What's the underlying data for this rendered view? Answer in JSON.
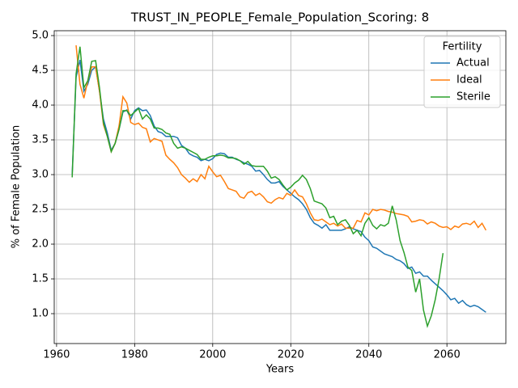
{
  "chart_data": {
    "type": "line",
    "title": "TRUST_IN_PEOPLE_Female_Population_Scoring: 8",
    "x_label": "Years",
    "y_label": "% of Female Population",
    "legend_title": "Fertility",
    "legend_position": "upper right",
    "grid": true,
    "xlim": [
      1959.4,
      2075.1
    ],
    "ylim": [
      0.57,
      5.07
    ],
    "xticks": [
      1960,
      1980,
      2000,
      2020,
      2040,
      2060
    ],
    "yticks": [
      {
        "value": 1,
        "label": "1.0"
      },
      1.5,
      {
        "value": 2,
        "label": "2.0"
      },
      2.5,
      {
        "value": 3,
        "label": "3.0"
      },
      3.5,
      {
        "value": 4,
        "label": "4.0"
      },
      4.5,
      {
        "value": 5,
        "label": "5.0"
      }
    ],
    "x": [
      1964,
      1965,
      1966,
      1967,
      1968,
      1969,
      1970,
      1971,
      1972,
      1973,
      1974,
      1975,
      1976,
      1977,
      1978,
      1979,
      1980,
      1981,
      1982,
      1983,
      1984,
      1985,
      1986,
      1987,
      1988,
      1989,
      1990,
      1991,
      1992,
      1993,
      1994,
      1995,
      1996,
      1997,
      1998,
      1999,
      2000,
      2001,
      2002,
      2003,
      2004,
      2005,
      2006,
      2007,
      2008,
      2009,
      2010,
      2011,
      2012,
      2013,
      2014,
      2015,
      2016,
      2017,
      2018,
      2019,
      2020,
      2021,
      2022,
      2023,
      2024,
      2025,
      2026,
      2027,
      2028,
      2029,
      2030,
      2031,
      2032,
      2033,
      2034,
      2035,
      2036,
      2037,
      2038,
      2039,
      2040,
      2041,
      2042,
      2043,
      2044,
      2045,
      2046,
      2047,
      2048,
      2049,
      2050,
      2051,
      2052,
      2053,
      2054,
      2055,
      2056,
      2057,
      2058,
      2059,
      2060,
      2061,
      2062,
      2063,
      2064,
      2065,
      2066,
      2067,
      2068,
      2069,
      2070
    ],
    "series": [
      {
        "name": "Actual",
        "color": "#1f77b4",
        "values": [
          3.0,
          4.4,
          4.65,
          4.2,
          4.3,
          4.5,
          4.55,
          4.2,
          3.8,
          3.6,
          3.35,
          3.45,
          3.65,
          3.9,
          3.93,
          3.8,
          3.92,
          3.96,
          3.92,
          3.93,
          3.85,
          3.7,
          3.62,
          3.6,
          3.55,
          3.55,
          3.55,
          3.53,
          3.42,
          3.38,
          3.3,
          3.27,
          3.25,
          3.2,
          3.22,
          3.2,
          3.23,
          3.29,
          3.31,
          3.3,
          3.25,
          3.25,
          3.22,
          3.2,
          3.17,
          3.15,
          3.12,
          3.05,
          3.06,
          3.0,
          2.93,
          2.88,
          2.88,
          2.9,
          2.83,
          2.78,
          2.73,
          2.68,
          2.64,
          2.58,
          2.5,
          2.38,
          2.3,
          2.27,
          2.23,
          2.28,
          2.2,
          2.2,
          2.2,
          2.2,
          2.22,
          2.25,
          2.22,
          2.2,
          2.18,
          2.1,
          2.05,
          1.96,
          1.94,
          1.9,
          1.86,
          1.84,
          1.82,
          1.78,
          1.76,
          1.72,
          1.65,
          1.67,
          1.58,
          1.6,
          1.54,
          1.54,
          1.48,
          1.43,
          1.38,
          1.33,
          1.27,
          1.2,
          1.22,
          1.15,
          1.19,
          1.13,
          1.1,
          1.12,
          1.1,
          1.06,
          1.02
        ]
      },
      {
        "name": "Ideal",
        "color": "#ff7f0e",
        "values": [
          null,
          4.86,
          4.3,
          4.1,
          4.35,
          4.55,
          4.55,
          4.2,
          3.72,
          3.55,
          3.33,
          3.45,
          3.7,
          4.12,
          4.03,
          3.75,
          3.72,
          3.74,
          3.68,
          3.66,
          3.47,
          3.52,
          3.5,
          3.48,
          3.28,
          3.22,
          3.17,
          3.1,
          3.0,
          2.95,
          2.89,
          2.94,
          2.9,
          3.0,
          2.94,
          3.12,
          3.04,
          2.97,
          2.99,
          2.9,
          2.8,
          2.78,
          2.76,
          2.68,
          2.66,
          2.74,
          2.76,
          2.7,
          2.73,
          2.68,
          2.61,
          2.59,
          2.64,
          2.67,
          2.65,
          2.73,
          2.7,
          2.78,
          2.7,
          2.68,
          2.58,
          2.45,
          2.35,
          2.34,
          2.36,
          2.32,
          2.28,
          2.3,
          2.26,
          2.29,
          2.23,
          2.23,
          2.23,
          2.34,
          2.32,
          2.45,
          2.42,
          2.5,
          2.48,
          2.5,
          2.49,
          2.47,
          2.46,
          2.44,
          2.43,
          2.42,
          2.4,
          2.32,
          2.33,
          2.35,
          2.34,
          2.29,
          2.32,
          2.3,
          2.26,
          2.24,
          2.25,
          2.21,
          2.26,
          2.24,
          2.29,
          2.3,
          2.28,
          2.33,
          2.24,
          2.3,
          2.2
        ]
      },
      {
        "name": "Sterile",
        "color": "#2ca02c",
        "values": [
          2.96,
          4.45,
          4.84,
          4.25,
          4.35,
          4.63,
          4.64,
          4.25,
          3.75,
          3.55,
          3.33,
          3.45,
          3.65,
          3.92,
          3.92,
          3.85,
          3.9,
          3.95,
          3.8,
          3.86,
          3.8,
          3.67,
          3.67,
          3.65,
          3.6,
          3.58,
          3.45,
          3.38,
          3.4,
          3.38,
          3.35,
          3.32,
          3.29,
          3.22,
          3.22,
          3.25,
          3.27,
          3.27,
          3.28,
          3.27,
          3.24,
          3.24,
          3.23,
          3.2,
          3.15,
          3.19,
          3.13,
          3.12,
          3.12,
          3.12,
          3.05,
          2.95,
          2.97,
          2.93,
          2.85,
          2.78,
          2.82,
          2.88,
          2.92,
          2.99,
          2.93,
          2.8,
          2.62,
          2.6,
          2.58,
          2.52,
          2.38,
          2.4,
          2.28,
          2.33,
          2.35,
          2.27,
          2.15,
          2.2,
          2.12,
          2.3,
          2.38,
          2.27,
          2.22,
          2.28,
          2.26,
          2.3,
          2.55,
          2.35,
          2.05,
          1.88,
          1.67,
          1.62,
          1.31,
          1.5,
          1.05,
          0.82,
          0.97,
          1.2,
          1.5,
          1.87,
          null,
          null,
          null,
          null,
          null,
          null,
          null,
          null,
          null,
          null,
          null
        ]
      }
    ]
  }
}
